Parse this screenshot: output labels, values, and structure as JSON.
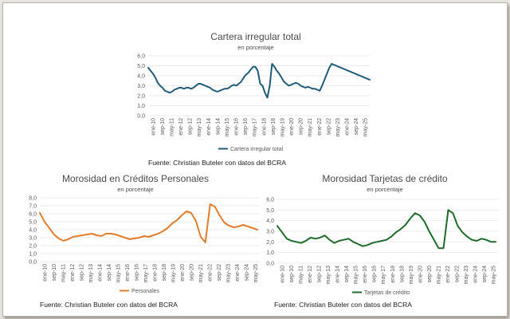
{
  "chart_data": [
    {
      "id": "top",
      "type": "line",
      "title": "Cartera irregular total",
      "subtitle": "en porcentaje",
      "ylim": [
        0,
        6
      ],
      "yticks": [
        "0,0",
        "1,0",
        "2,0",
        "3,0",
        "4,0",
        "5,0",
        "6,0"
      ],
      "xticks": [
        "ene-10",
        "sep-10",
        "may-11",
        "ene-12",
        "sep-12",
        "may-13",
        "ene-14",
        "sep-14",
        "may-15",
        "ene-16",
        "sep-16",
        "may-17",
        "ene-18",
        "sep-18",
        "may-19",
        "ene-20",
        "sep-20",
        "may-21",
        "ene-22",
        "sep-22",
        "may-23",
        "ene-24",
        "sep-24",
        "may-25"
      ],
      "legend_position": "bottom",
      "grid": true,
      "source": "Fuente: Christian Buteler con datos del BCRA",
      "series": [
        {
          "name": "Cartera irregular total",
          "color": "#1f5c7a",
          "x": [
            0,
            2,
            4,
            6,
            8,
            10,
            12,
            14,
            16,
            18,
            20,
            22,
            24,
            26,
            28,
            30,
            32,
            34,
            36,
            38,
            40,
            42,
            44,
            46,
            48,
            50,
            52,
            54,
            56,
            58,
            60,
            62,
            64,
            66,
            68,
            70,
            72,
            74,
            76,
            78,
            80,
            82,
            84,
            86,
            88,
            90,
            92,
            94,
            96,
            98,
            100,
            102,
            104,
            106,
            108,
            110,
            112,
            114,
            116,
            118,
            120,
            122,
            124,
            126,
            128,
            130,
            132,
            134,
            136,
            138,
            140,
            142,
            144,
            146,
            148,
            150,
            152,
            154,
            156,
            158,
            160,
            162,
            164,
            166,
            168,
            170,
            172,
            174,
            176,
            178,
            180,
            182,
            184,
            186
          ],
          "values": [
            4.8,
            4.5,
            4.2,
            3.8,
            3.3,
            3.0,
            2.8,
            2.5,
            2.4,
            2.3,
            2.4,
            2.6,
            2.7,
            2.8,
            2.8,
            2.7,
            2.8,
            2.8,
            2.7,
            2.8,
            3.0,
            3.2,
            3.2,
            3.1,
            3.0,
            2.9,
            2.8,
            2.6,
            2.5,
            2.4,
            2.5,
            2.6,
            2.7,
            2.7,
            2.8,
            3.0,
            3.1,
            3.0,
            3.2,
            3.4,
            3.8,
            4.1,
            4.3,
            4.6,
            4.9,
            4.9,
            4.5,
            3.2,
            3.0,
            2.3,
            1.8,
            3.0,
            5.2,
            4.9,
            4.5,
            4.2,
            3.8,
            3.4,
            3.2,
            3.0,
            3.1,
            3.2,
            3.3,
            3.2,
            3.0,
            2.9,
            2.8,
            2.9,
            2.8,
            2.7,
            2.7,
            2.6,
            2.5,
            3.0,
            3.6,
            4.2,
            4.8,
            5.2,
            5.1,
            5.0,
            4.9,
            4.8,
            4.7,
            4.6,
            4.5,
            4.4,
            4.3,
            4.2,
            4.1,
            4.0,
            3.9,
            3.8,
            3.7,
            3.6
          ]
        }
      ]
    },
    {
      "id": "left",
      "type": "line",
      "title": "Morosidad en Créditos Personales",
      "subtitle": "en porcentaje",
      "ylim": [
        0,
        8
      ],
      "yticks": [
        "0,0",
        "1,0",
        "2,0",
        "3,0",
        "4,0",
        "5,0",
        "6,0",
        "7,0",
        "8,0"
      ],
      "xticks": [
        "ene-10",
        "sep-10",
        "may-11",
        "ene-12",
        "sep-12",
        "may-13",
        "ene-14",
        "sep-14",
        "may-15",
        "ene-16",
        "sep-16",
        "may-17",
        "ene-18",
        "sep-18",
        "may-19",
        "ene-20",
        "sep-20",
        "may-21",
        "ene-22",
        "sep-22",
        "may-23",
        "ene-24",
        "sep-24",
        "may-25"
      ],
      "legend_position": "bottom",
      "grid": true,
      "source": "Fuente: Christian Buteler con datos del BCRA",
      "series": [
        {
          "name": "Personales",
          "color": "#e37d2b",
          "x": [
            0,
            4,
            8,
            12,
            16,
            20,
            24,
            28,
            32,
            36,
            40,
            44,
            48,
            52,
            56,
            60,
            64,
            68,
            72,
            76,
            80,
            84,
            88,
            92,
            96,
            100,
            104,
            108,
            112,
            116,
            120,
            124,
            128,
            132,
            136,
            140,
            144,
            148,
            152,
            156,
            160,
            164,
            168,
            172,
            176,
            180,
            184
          ],
          "values": [
            6.1,
            5.0,
            4.2,
            3.4,
            2.9,
            2.6,
            2.8,
            3.1,
            3.2,
            3.3,
            3.4,
            3.5,
            3.3,
            3.2,
            3.5,
            3.5,
            3.4,
            3.2,
            3.0,
            2.8,
            2.9,
            3.0,
            3.2,
            3.1,
            3.3,
            3.5,
            3.8,
            4.2,
            4.8,
            5.2,
            5.8,
            6.3,
            6.1,
            5.1,
            3.1,
            2.4,
            7.2,
            6.9,
            5.8,
            4.9,
            4.5,
            4.3,
            4.4,
            4.6,
            4.4,
            4.2,
            4.0
          ]
        }
      ]
    },
    {
      "id": "right",
      "type": "line",
      "title": "Morosidad Tarjetas de crédito",
      "subtitle": "en porcentaje",
      "ylim": [
        0,
        6
      ],
      "yticks": [
        "0,0",
        "1,0",
        "2,0",
        "3,0",
        "4,0",
        "5,0",
        "6,0"
      ],
      "xticks": [
        "ene-10",
        "sep-10",
        "may-11",
        "ene-12",
        "sep-12",
        "may-13",
        "ene-14",
        "sep-14",
        "may-15",
        "ene-16",
        "sep-16",
        "may-17",
        "ene-18",
        "sep-18",
        "may-19",
        "ene-20",
        "sep-20",
        "may-21",
        "ene-22",
        "sep-22",
        "may-23",
        "ene-24",
        "sep-24",
        "may-25"
      ],
      "legend_position": "bottom",
      "grid": true,
      "source": "Fuente: Christian Buteler con datos del BCRA",
      "series": [
        {
          "name": "Tarjetas de crédito",
          "color": "#1e6b2a",
          "x": [
            0,
            4,
            8,
            12,
            16,
            20,
            24,
            28,
            32,
            36,
            40,
            44,
            48,
            52,
            56,
            60,
            64,
            68,
            72,
            76,
            80,
            84,
            88,
            92,
            96,
            100,
            104,
            108,
            112,
            116,
            120,
            124,
            128,
            132,
            136,
            140,
            144,
            148,
            152,
            156,
            160,
            164,
            168,
            172,
            176,
            180,
            184
          ],
          "values": [
            3.5,
            2.9,
            2.3,
            2.1,
            2.0,
            1.9,
            2.1,
            2.4,
            2.3,
            2.4,
            2.6,
            2.2,
            1.9,
            2.1,
            2.2,
            2.3,
            2.0,
            1.8,
            1.6,
            1.7,
            1.9,
            2.0,
            2.1,
            2.2,
            2.5,
            2.9,
            3.2,
            3.6,
            4.2,
            4.7,
            4.5,
            3.9,
            3.0,
            2.2,
            1.4,
            1.4,
            5.0,
            4.7,
            3.5,
            2.9,
            2.5,
            2.2,
            2.1,
            2.3,
            2.2,
            2.0,
            2.0
          ]
        }
      ]
    }
  ]
}
